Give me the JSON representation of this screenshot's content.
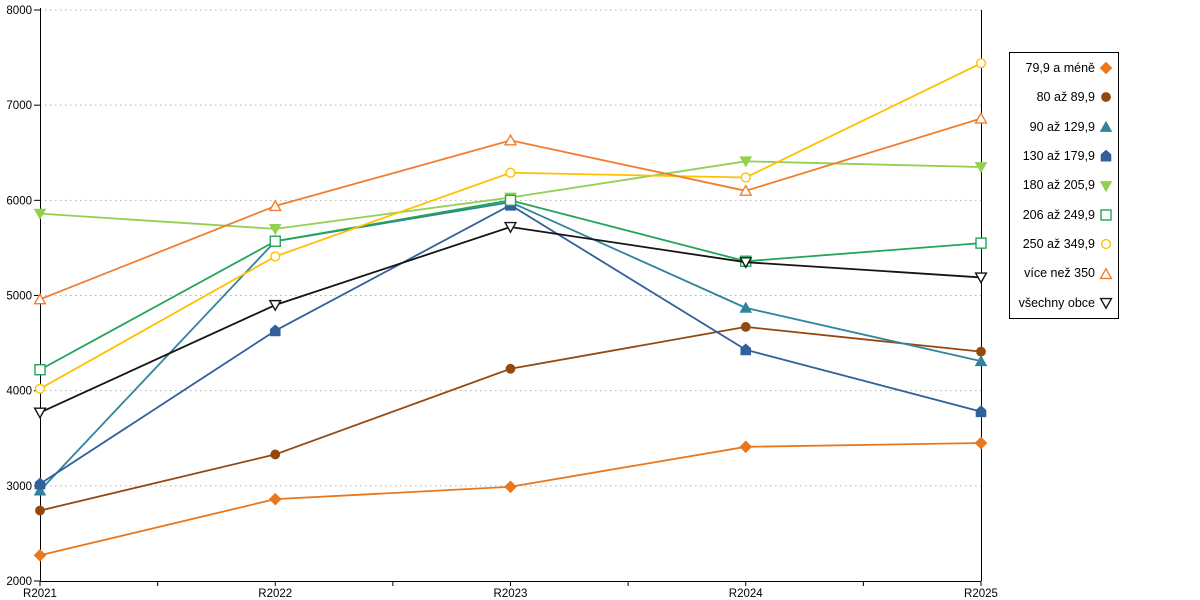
{
  "chart": {
    "background": "#FFFFFF",
    "axis_color": "#000000",
    "grid_color": "#AFAFAF",
    "tick_label_color": "#000000"
  },
  "chart_data": {
    "type": "line",
    "title": "",
    "xlabel": "",
    "ylabel": "",
    "categories": [
      "R2021",
      "R2022",
      "R2023",
      "R2024",
      "R2025"
    ],
    "ylim": [
      2000,
      8000
    ],
    "ytick_step": 1000,
    "ytick_labels": [
      "2000",
      "3000",
      "4000",
      "5000",
      "6000",
      "7000",
      "8000"
    ],
    "grid": "horizontal-dotted",
    "legend_position": "right-boxed",
    "series": [
      {
        "name": "79,9 a méně",
        "color": "#E8771E",
        "marker": "diamond",
        "marker_fill": "solid",
        "values": [
          2270,
          2860,
          2990,
          3410,
          3450
        ]
      },
      {
        "name": "80 až 89,9",
        "color": "#94480D",
        "marker": "circle",
        "marker_fill": "solid",
        "values": [
          2740,
          3330,
          4230,
          4670,
          4410
        ]
      },
      {
        "name": "90 až 129,9",
        "color": "#31849B",
        "marker": "triangle-up",
        "marker_fill": "solid",
        "values": [
          2950,
          5570,
          5980,
          4870,
          4310
        ]
      },
      {
        "name": "130 až 179,9",
        "color": "#31609C",
        "marker": "pentagon",
        "marker_fill": "solid",
        "values": [
          3020,
          4630,
          5950,
          4430,
          3780
        ]
      },
      {
        "name": "180 až 205,9",
        "color": "#92D050",
        "marker": "triangle-down",
        "marker_fill": "solid",
        "values": [
          5860,
          5700,
          6030,
          6410,
          6350
        ]
      },
      {
        "name": "206 až 249,9",
        "color": "#23A45A",
        "marker": "square",
        "marker_fill": "hollow",
        "values": [
          4220,
          5570,
          6000,
          5360,
          5550
        ]
      },
      {
        "name": "250 až 349,9",
        "color": "#FFC000",
        "marker": "circle",
        "marker_fill": "hollow",
        "values": [
          4020,
          5410,
          6290,
          6240,
          7440
        ]
      },
      {
        "name": "více než 350",
        "color": "#F07E2E",
        "marker": "triangle-up",
        "marker_fill": "hollow",
        "values": [
          4960,
          5940,
          6630,
          6100,
          6860
        ]
      },
      {
        "name": "všechny obce",
        "color": "#151515",
        "marker": "triangle-down",
        "marker_fill": "hollow",
        "values": [
          3770,
          4900,
          5720,
          5350,
          5190
        ]
      }
    ]
  }
}
